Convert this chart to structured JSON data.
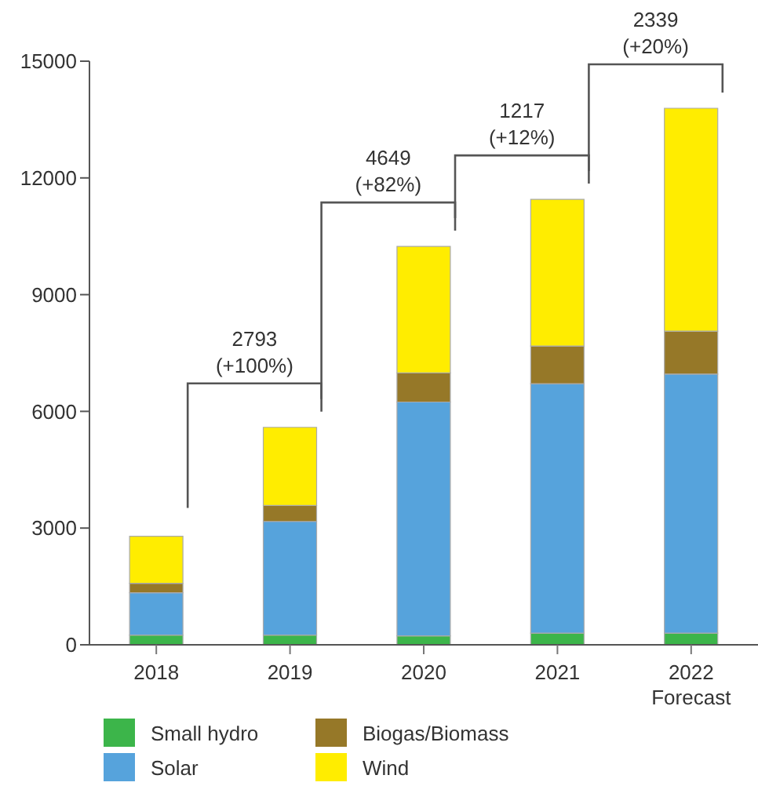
{
  "chart_data": {
    "type": "bar",
    "stacked": true,
    "categories": [
      "2018",
      "2019",
      "2020",
      "2021",
      "2022\nForecast"
    ],
    "series": [
      {
        "name": "Small hydro",
        "color": "#3cb54a",
        "values": [
          250,
          250,
          230,
          300,
          300
        ]
      },
      {
        "name": "Solar",
        "color": "#56a3dc",
        "values": [
          1090,
          2920,
          6010,
          6410,
          6660
        ]
      },
      {
        "name": "Biogas/Biomass",
        "color": "#967828",
        "values": [
          240,
          410,
          750,
          970,
          1100
        ]
      },
      {
        "name": "Wind",
        "color": "#ffed00",
        "values": [
          1210,
          2010,
          3250,
          3770,
          5730
        ]
      }
    ],
    "ylim": [
      0,
      15000
    ],
    "yticks": [
      0,
      3000,
      6000,
      9000,
      12000,
      15000
    ],
    "grid": false,
    "legend": "bottom",
    "annotations": [
      "2793\n(+100%)",
      "4649\n(+82%)",
      "1217\n(+12%)",
      "2339\n(+20%)"
    ]
  }
}
